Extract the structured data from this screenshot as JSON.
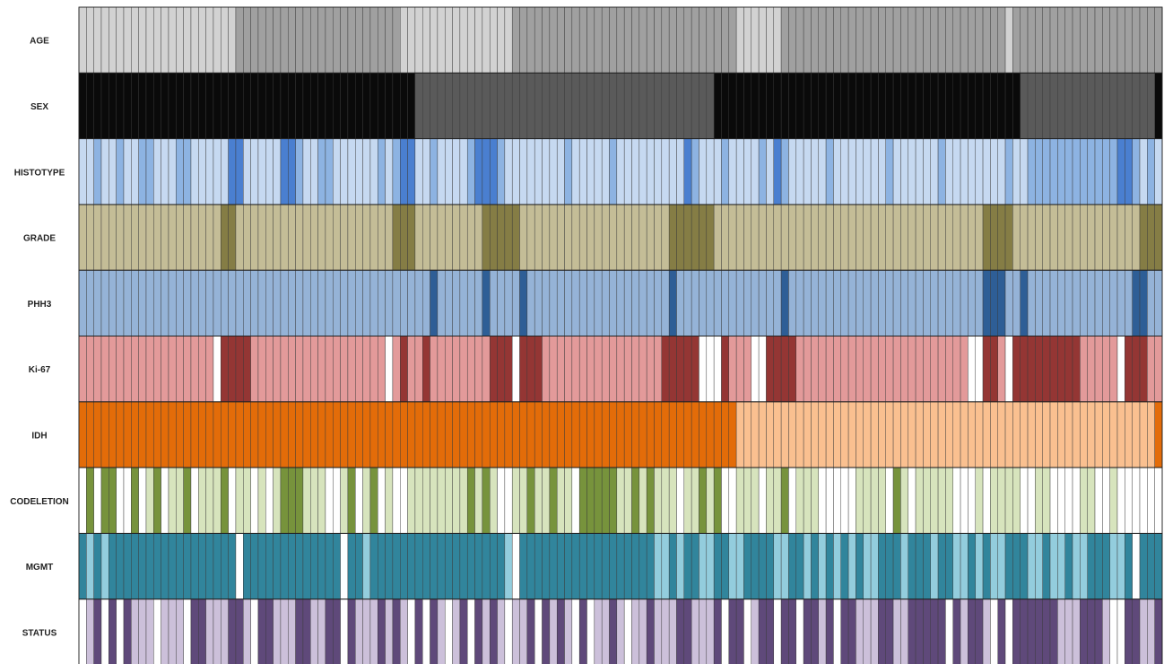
{
  "chart_data": {
    "type": "heatmap",
    "title": "",
    "rows": [
      "AGE",
      "SEX",
      "HISTOTYPE",
      "GRADE",
      "PHH3",
      "Ki-67",
      "IDH",
      "CODELETION",
      "MGMT",
      "STATUS"
    ],
    "columns": 145,
    "palettes": {
      "AGE": [
        "#d2d2d2",
        "#a0a0a0"
      ],
      "SEX": [
        "#0a0a0a",
        "#5a5a5a"
      ],
      "HISTOTYPE": [
        "#c6d9f1",
        "#8db3e2",
        "#4a7fd0"
      ],
      "GRADE": [
        "#c4bd97",
        "#857d45"
      ],
      "PHH3": [
        "#95b3d7",
        "#2e5e96"
      ],
      "Ki-67": [
        "#ffffff",
        "#e39a9a",
        "#943634"
      ],
      "IDH": [
        "#e36c09",
        "#fac090"
      ],
      "CODELETION": [
        "#ffffff",
        "#d7e4bd",
        "#77933c"
      ],
      "MGMT": [
        "#ffffff",
        "#93cddd",
        "#31859c"
      ],
      "STATUS": [
        "#ffffff",
        "#ccc0da",
        "#5f497a"
      ]
    },
    "segments": {
      "AGE": [
        [
          0,
          21
        ],
        [
          1,
          43
        ],
        [
          0,
          58
        ],
        [
          1,
          88
        ],
        [
          0,
          94
        ],
        [
          1,
          124
        ],
        [
          0,
          125
        ],
        [
          1,
          145
        ]
      ],
      "SEX": [
        [
          0,
          45
        ],
        [
          1,
          85
        ],
        [
          0,
          126
        ],
        [
          1,
          144
        ],
        [
          0,
          145
        ]
      ],
      "HISTOTYPE": [
        [
          0,
          2
        ],
        [
          1,
          3
        ],
        [
          0,
          5
        ],
        [
          1,
          6
        ],
        [
          0,
          8
        ],
        [
          1,
          10
        ],
        [
          0,
          13
        ],
        [
          1,
          15
        ],
        [
          0,
          20
        ],
        [
          2,
          22
        ],
        [
          0,
          27
        ],
        [
          2,
          29
        ],
        [
          1,
          30
        ],
        [
          0,
          32
        ],
        [
          1,
          34
        ],
        [
          0,
          40
        ],
        [
          1,
          41
        ],
        [
          0,
          42
        ],
        [
          1,
          43
        ],
        [
          2,
          45
        ],
        [
          0,
          47
        ],
        [
          1,
          48
        ],
        [
          0,
          52
        ],
        [
          1,
          53
        ],
        [
          2,
          56
        ],
        [
          1,
          57
        ],
        [
          0,
          65
        ],
        [
          1,
          66
        ],
        [
          0,
          71
        ],
        [
          1,
          72
        ],
        [
          0,
          81
        ],
        [
          2,
          82
        ],
        [
          1,
          83
        ],
        [
          0,
          86
        ],
        [
          1,
          87
        ],
        [
          0,
          91
        ],
        [
          1,
          92
        ],
        [
          0,
          93
        ],
        [
          2,
          94
        ],
        [
          1,
          95
        ],
        [
          0,
          100
        ],
        [
          1,
          101
        ],
        [
          0,
          108
        ],
        [
          1,
          109
        ],
        [
          0,
          115
        ],
        [
          1,
          116
        ],
        [
          0,
          124
        ],
        [
          1,
          125
        ],
        [
          0,
          127
        ],
        [
          1,
          139
        ],
        [
          2,
          141
        ],
        [
          1,
          142
        ],
        [
          0,
          143
        ],
        [
          1,
          144
        ],
        [
          0,
          145
        ]
      ],
      "GRADE": [
        [
          0,
          19
        ],
        [
          1,
          21
        ],
        [
          0,
          42
        ],
        [
          1,
          45
        ],
        [
          0,
          54
        ],
        [
          1,
          59
        ],
        [
          0,
          79
        ],
        [
          1,
          85
        ],
        [
          0,
          121
        ],
        [
          1,
          125
        ],
        [
          0,
          142
        ],
        [
          1,
          145
        ]
      ],
      "PHH3": [
        [
          0,
          47
        ],
        [
          1,
          48
        ],
        [
          0,
          54
        ],
        [
          1,
          55
        ],
        [
          0,
          59
        ],
        [
          1,
          60
        ],
        [
          0,
          79
        ],
        [
          1,
          80
        ],
        [
          0,
          94
        ],
        [
          1,
          95
        ],
        [
          0,
          121
        ],
        [
          1,
          124
        ],
        [
          0,
          126
        ],
        [
          1,
          127
        ],
        [
          0,
          141
        ],
        [
          1,
          143
        ],
        [
          0,
          145
        ]
      ],
      "Ki-67": [
        [
          1,
          18
        ],
        [
          0,
          19
        ],
        [
          2,
          23
        ],
        [
          1,
          41
        ],
        [
          0,
          42
        ],
        [
          1,
          43
        ],
        [
          2,
          44
        ],
        [
          1,
          46
        ],
        [
          2,
          47
        ],
        [
          1,
          55
        ],
        [
          2,
          58
        ],
        [
          0,
          59
        ],
        [
          2,
          62
        ],
        [
          1,
          78
        ],
        [
          2,
          83
        ],
        [
          0,
          86
        ],
        [
          2,
          87
        ],
        [
          1,
          90
        ],
        [
          0,
          92
        ],
        [
          2,
          96
        ],
        [
          1,
          119
        ],
        [
          0,
          121
        ],
        [
          2,
          123
        ],
        [
          1,
          124
        ],
        [
          0,
          125
        ],
        [
          2,
          134
        ],
        [
          1,
          139
        ],
        [
          0,
          140
        ],
        [
          2,
          143
        ],
        [
          1,
          145
        ]
      ],
      "IDH": [
        [
          0,
          88
        ],
        [
          1,
          144
        ],
        [
          0,
          145
        ]
      ],
      "CODELETION": [
        [
          0,
          1
        ],
        [
          2,
          2
        ],
        [
          0,
          3
        ],
        [
          2,
          5
        ],
        [
          0,
          7
        ],
        [
          2,
          8
        ],
        [
          0,
          9
        ],
        [
          1,
          10
        ],
        [
          2,
          11
        ],
        [
          0,
          12
        ],
        [
          1,
          14
        ],
        [
          2,
          15
        ],
        [
          0,
          16
        ],
        [
          1,
          19
        ],
        [
          2,
          20
        ],
        [
          0,
          21
        ],
        [
          1,
          23
        ],
        [
          0,
          24
        ],
        [
          1,
          25
        ],
        [
          0,
          26
        ],
        [
          1,
          27
        ],
        [
          2,
          30
        ],
        [
          1,
          33
        ],
        [
          0,
          35
        ],
        [
          1,
          36
        ],
        [
          2,
          37
        ],
        [
          0,
          38
        ],
        [
          1,
          39
        ],
        [
          2,
          40
        ],
        [
          0,
          41
        ],
        [
          1,
          42
        ],
        [
          0,
          44
        ],
        [
          1,
          52
        ],
        [
          2,
          53
        ],
        [
          1,
          54
        ],
        [
          2,
          55
        ],
        [
          1,
          56
        ],
        [
          0,
          58
        ],
        [
          1,
          60
        ],
        [
          2,
          61
        ],
        [
          1,
          63
        ],
        [
          2,
          64
        ],
        [
          1,
          66
        ],
        [
          0,
          67
        ],
        [
          2,
          72
        ],
        [
          1,
          74
        ],
        [
          2,
          75
        ],
        [
          1,
          76
        ],
        [
          2,
          77
        ],
        [
          1,
          80
        ],
        [
          0,
          81
        ],
        [
          1,
          83
        ],
        [
          2,
          84
        ],
        [
          1,
          85
        ],
        [
          2,
          86
        ],
        [
          0,
          88
        ],
        [
          1,
          91
        ],
        [
          0,
          92
        ],
        [
          1,
          94
        ],
        [
          2,
          95
        ],
        [
          0,
          96
        ],
        [
          1,
          99
        ],
        [
          0,
          104
        ],
        [
          1,
          108
        ],
        [
          0,
          109
        ],
        [
          2,
          110
        ],
        [
          1,
          111
        ],
        [
          0,
          112
        ],
        [
          1,
          117
        ],
        [
          0,
          120
        ],
        [
          1,
          121
        ],
        [
          0,
          122
        ],
        [
          1,
          126
        ],
        [
          0,
          128
        ],
        [
          1,
          130
        ],
        [
          0,
          134
        ],
        [
          1,
          136
        ],
        [
          0,
          138
        ],
        [
          1,
          139
        ],
        [
          0,
          145
        ]
      ],
      "MGMT": [
        [
          2,
          1
        ],
        [
          1,
          2
        ],
        [
          2,
          3
        ],
        [
          1,
          4
        ],
        [
          2,
          21
        ],
        [
          0,
          22
        ],
        [
          2,
          35
        ],
        [
          0,
          36
        ],
        [
          2,
          38
        ],
        [
          1,
          39
        ],
        [
          2,
          57
        ],
        [
          1,
          58
        ],
        [
          0,
          59
        ],
        [
          2,
          77
        ],
        [
          1,
          79
        ],
        [
          2,
          80
        ],
        [
          1,
          81
        ],
        [
          2,
          83
        ],
        [
          1,
          85
        ],
        [
          2,
          87
        ],
        [
          1,
          89
        ],
        [
          2,
          93
        ],
        [
          1,
          95
        ],
        [
          2,
          97
        ],
        [
          1,
          98
        ],
        [
          2,
          99
        ],
        [
          1,
          100
        ],
        [
          2,
          101
        ],
        [
          1,
          102
        ],
        [
          2,
          103
        ],
        [
          1,
          104
        ],
        [
          2,
          105
        ],
        [
          1,
          107
        ],
        [
          2,
          110
        ],
        [
          1,
          111
        ],
        [
          2,
          114
        ],
        [
          1,
          115
        ],
        [
          2,
          117
        ],
        [
          1,
          119
        ],
        [
          2,
          120
        ],
        [
          1,
          121
        ],
        [
          2,
          122
        ],
        [
          1,
          124
        ],
        [
          2,
          127
        ],
        [
          1,
          129
        ],
        [
          2,
          130
        ],
        [
          1,
          132
        ],
        [
          2,
          133
        ],
        [
          1,
          135
        ],
        [
          2,
          138
        ],
        [
          1,
          140
        ],
        [
          2,
          141
        ],
        [
          0,
          142
        ],
        [
          2,
          145
        ]
      ],
      "STATUS": [
        [
          0,
          1
        ],
        [
          1,
          2
        ],
        [
          2,
          3
        ],
        [
          0,
          4
        ],
        [
          2,
          5
        ],
        [
          0,
          6
        ],
        [
          2,
          7
        ],
        [
          1,
          10
        ],
        [
          0,
          11
        ],
        [
          1,
          14
        ],
        [
          0,
          15
        ],
        [
          2,
          17
        ],
        [
          1,
          20
        ],
        [
          2,
          22
        ],
        [
          1,
          23
        ],
        [
          0,
          24
        ],
        [
          2,
          26
        ],
        [
          1,
          29
        ],
        [
          2,
          31
        ],
        [
          1,
          33
        ],
        [
          2,
          35
        ],
        [
          0,
          36
        ],
        [
          2,
          37
        ],
        [
          1,
          40
        ],
        [
          2,
          41
        ],
        [
          1,
          42
        ],
        [
          2,
          43
        ],
        [
          1,
          44
        ],
        [
          0,
          45
        ],
        [
          2,
          46
        ],
        [
          0,
          47
        ],
        [
          2,
          48
        ],
        [
          1,
          49
        ],
        [
          0,
          50
        ],
        [
          1,
          51
        ],
        [
          2,
          52
        ],
        [
          0,
          53
        ],
        [
          2,
          54
        ],
        [
          1,
          55
        ],
        [
          2,
          56
        ],
        [
          1,
          57
        ],
        [
          0,
          58
        ],
        [
          1,
          60
        ],
        [
          2,
          61
        ],
        [
          0,
          62
        ],
        [
          2,
          63
        ],
        [
          1,
          64
        ],
        [
          2,
          65
        ],
        [
          1,
          66
        ],
        [
          0,
          67
        ],
        [
          2,
          68
        ],
        [
          0,
          69
        ],
        [
          1,
          71
        ],
        [
          2,
          72
        ],
        [
          1,
          73
        ],
        [
          0,
          74
        ],
        [
          1,
          76
        ],
        [
          2,
          77
        ],
        [
          1,
          80
        ],
        [
          2,
          82
        ],
        [
          1,
          85
        ],
        [
          2,
          86
        ],
        [
          0,
          87
        ],
        [
          2,
          89
        ],
        [
          0,
          90
        ],
        [
          1,
          91
        ],
        [
          2,
          93
        ],
        [
          0,
          94
        ],
        [
          2,
          96
        ],
        [
          0,
          97
        ],
        [
          2,
          99
        ],
        [
          1,
          100
        ],
        [
          2,
          101
        ],
        [
          0,
          102
        ],
        [
          2,
          104
        ],
        [
          1,
          107
        ],
        [
          2,
          109
        ],
        [
          1,
          111
        ],
        [
          2,
          116
        ],
        [
          0,
          117
        ],
        [
          2,
          118
        ],
        [
          1,
          119
        ],
        [
          2,
          121
        ],
        [
          1,
          122
        ],
        [
          0,
          123
        ],
        [
          2,
          124
        ],
        [
          0,
          125
        ],
        [
          2,
          131
        ],
        [
          1,
          134
        ],
        [
          2,
          137
        ],
        [
          1,
          138
        ],
        [
          0,
          140
        ],
        [
          2,
          142
        ],
        [
          1,
          144
        ],
        [
          2,
          145
        ]
      ]
    }
  }
}
